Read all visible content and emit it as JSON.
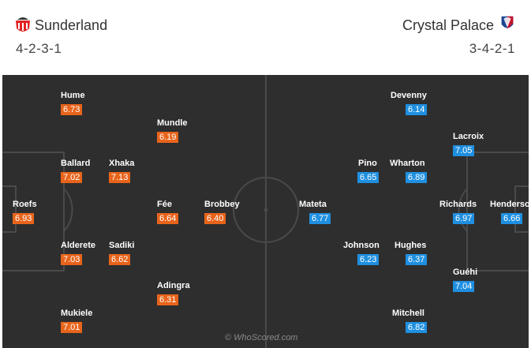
{
  "home": {
    "name": "Sunderland",
    "formation": "4-2-3-1",
    "crest_icon": "sunderland-crest-icon",
    "rating_color": "#e8641b",
    "players": [
      {
        "name": "Roefs",
        "rating": "6.93"
      },
      {
        "name": "Hume",
        "rating": "6.73"
      },
      {
        "name": "Ballard",
        "rating": "7.02"
      },
      {
        "name": "Alderete",
        "rating": "7.03"
      },
      {
        "name": "Mukiele",
        "rating": "7.01"
      },
      {
        "name": "Xhaka",
        "rating": "7.13"
      },
      {
        "name": "Sadiki",
        "rating": "6.62"
      },
      {
        "name": "Mundle",
        "rating": "6.19"
      },
      {
        "name": "Fée",
        "rating": "6.64"
      },
      {
        "name": "Adingra",
        "rating": "6.31"
      },
      {
        "name": "Brobbey",
        "rating": "6.40"
      }
    ]
  },
  "away": {
    "name": "Crystal Palace",
    "formation": "3-4-2-1",
    "crest_icon": "crystal-palace-crest-icon",
    "rating_color": "#1f8fe0",
    "players": [
      {
        "name": "Henderson",
        "rating": "6.66"
      },
      {
        "name": "Lacroix",
        "rating": "7.05"
      },
      {
        "name": "Richards",
        "rating": "6.97"
      },
      {
        "name": "Guéhi",
        "rating": "7.04"
      },
      {
        "name": "Devenny",
        "rating": "6.14"
      },
      {
        "name": "Wharton",
        "rating": "6.89"
      },
      {
        "name": "Hughes",
        "rating": "6.37"
      },
      {
        "name": "Mitchell",
        "rating": "6.82"
      },
      {
        "name": "Pino",
        "rating": "6.65"
      },
      {
        "name": "Johnson",
        "rating": "6.23"
      },
      {
        "name": "Mateta",
        "rating": "6.77"
      }
    ]
  },
  "watermark": "© WhoScored.com"
}
